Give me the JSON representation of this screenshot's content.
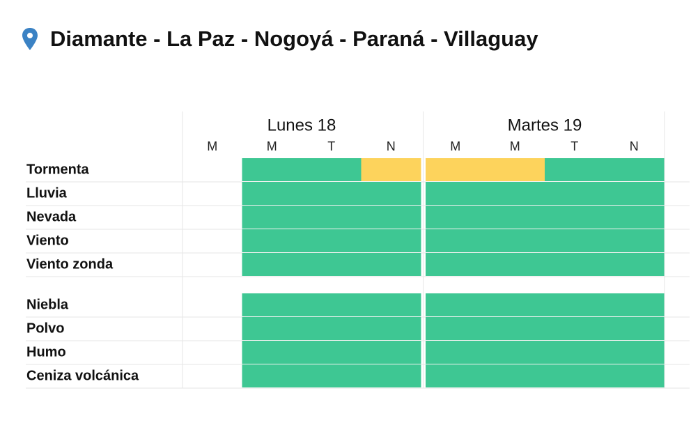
{
  "title": "Diamante - La Paz - Nogoyá - Paraná - Villaguay",
  "days": [
    {
      "label": "Lunes 18",
      "periods": [
        "M",
        "M",
        "T",
        "N"
      ]
    },
    {
      "label": "Martes 19",
      "periods": [
        "M",
        "M",
        "T",
        "N"
      ]
    }
  ],
  "groups": [
    [
      {
        "label": "Tormenta",
        "cells": [
          [
            null,
            "#3ec793",
            "#3ec793",
            "#fdd35c"
          ],
          [
            "#fdd35c",
            "#fdd35c",
            "#3ec793",
            "#3ec793"
          ]
        ]
      },
      {
        "label": "Lluvia",
        "cells": [
          [
            null,
            "#3ec793",
            "#3ec793",
            "#3ec793"
          ],
          [
            "#3ec793",
            "#3ec793",
            "#3ec793",
            "#3ec793"
          ]
        ]
      },
      {
        "label": "Nevada",
        "cells": [
          [
            null,
            "#3ec793",
            "#3ec793",
            "#3ec793"
          ],
          [
            "#3ec793",
            "#3ec793",
            "#3ec793",
            "#3ec793"
          ]
        ]
      },
      {
        "label": "Viento",
        "cells": [
          [
            null,
            "#3ec793",
            "#3ec793",
            "#3ec793"
          ],
          [
            "#3ec793",
            "#3ec793",
            "#3ec793",
            "#3ec793"
          ]
        ]
      },
      {
        "label": "Viento zonda",
        "cells": [
          [
            null,
            "#3ec793",
            "#3ec793",
            "#3ec793"
          ],
          [
            "#3ec793",
            "#3ec793",
            "#3ec793",
            "#3ec793"
          ]
        ]
      }
    ],
    [
      {
        "label": "Niebla",
        "cells": [
          [
            null,
            "#3ec793",
            "#3ec793",
            "#3ec793"
          ],
          [
            "#3ec793",
            "#3ec793",
            "#3ec793",
            "#3ec793"
          ]
        ]
      },
      {
        "label": "Polvo",
        "cells": [
          [
            null,
            "#3ec793",
            "#3ec793",
            "#3ec793"
          ],
          [
            "#3ec793",
            "#3ec793",
            "#3ec793",
            "#3ec793"
          ]
        ]
      },
      {
        "label": "Humo",
        "cells": [
          [
            null,
            "#3ec793",
            "#3ec793",
            "#3ec793"
          ],
          [
            "#3ec793",
            "#3ec793",
            "#3ec793",
            "#3ec793"
          ]
        ]
      },
      {
        "label": "Ceniza volcánica",
        "cells": [
          [
            null,
            "#3ec793",
            "#3ec793",
            "#3ec793"
          ],
          [
            "#3ec793",
            "#3ec793",
            "#3ec793",
            "#3ec793"
          ]
        ]
      }
    ]
  ]
}
